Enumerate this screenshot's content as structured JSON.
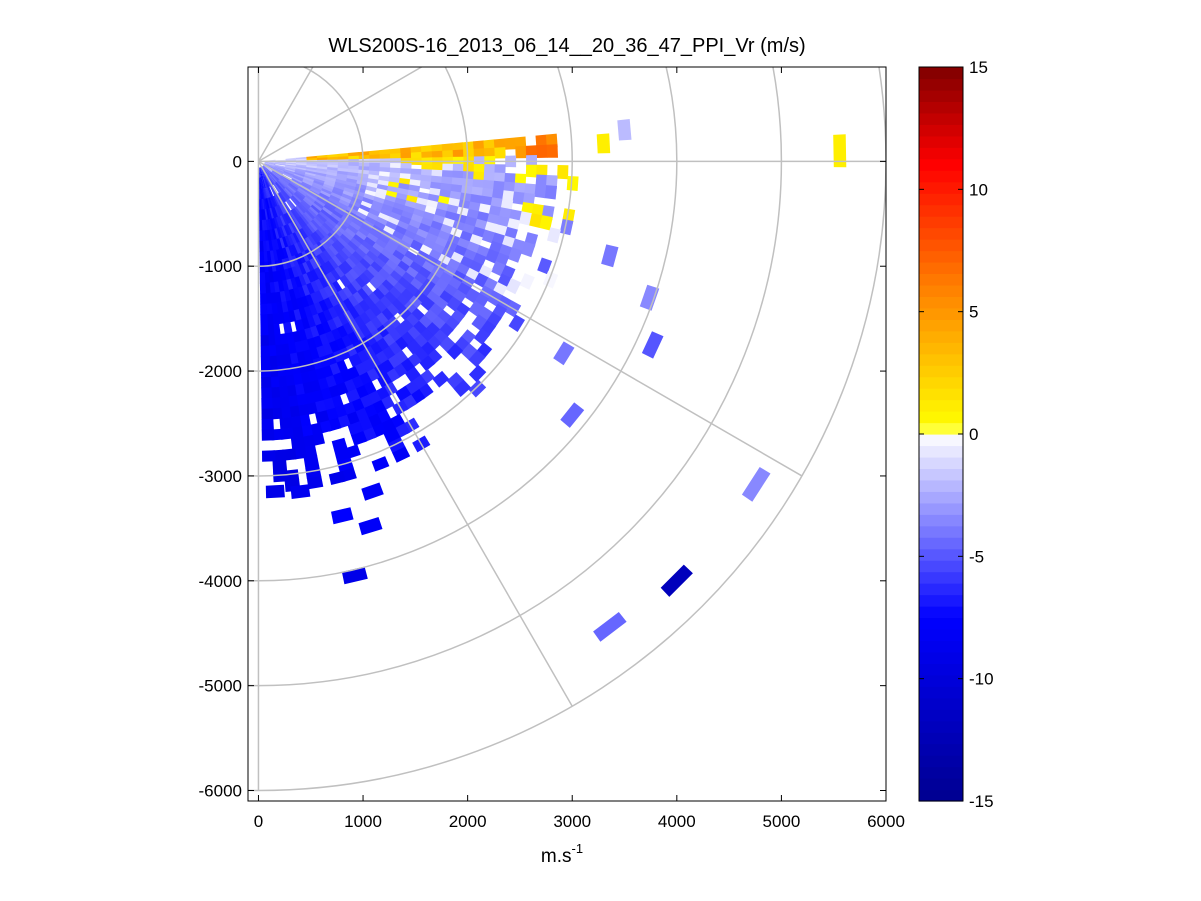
{
  "chart_data": {
    "type": "heatmap",
    "title": "WLS200S-16_2013_06_14__20_36_47_PPI_Vr (m/s)",
    "xlabel_base": "m.s",
    "xlabel_exp": "-1",
    "ylabel": "",
    "xlim": [
      -100,
      6000
    ],
    "ylim": [
      -6100,
      900
    ],
    "x_ticks": [
      0,
      1000,
      2000,
      3000,
      4000,
      5000,
      6000
    ],
    "x_tick_labels": [
      "0",
      "1000",
      "2000",
      "3000",
      "4000",
      "5000",
      "6000"
    ],
    "y_ticks": [
      0,
      -1000,
      -2000,
      -3000,
      -4000,
      -5000,
      -6000
    ],
    "y_tick_labels": [
      "0",
      "-1000",
      "-2000",
      "-3000",
      "-4000",
      "-5000",
      "-6000"
    ],
    "polar_grid": {
      "range_rings": [
        1000,
        2000,
        3000,
        4000,
        5000,
        6000
      ],
      "azimuth_spokes_deg": [
        0,
        -30,
        -60,
        -90,
        30,
        60,
        90
      ],
      "grid_color": "#c0c0c0"
    },
    "colorbar": {
      "range": [
        -15,
        15
      ],
      "ticks": [
        15,
        10,
        5,
        0,
        -5,
        -10,
        -15
      ],
      "tick_labels": [
        "15",
        "10",
        "5",
        "0",
        "-5",
        "-10",
        "-15"
      ],
      "colors_low_to_high": [
        "#00008f",
        "#0000ff",
        "#ffffff",
        "#ffff00",
        "#ff7f00",
        "#ff0000",
        "#7f0000"
      ]
    },
    "scan": {
      "azimuth_start_deg": 5,
      "azimuth_end_deg": -88,
      "azimuth_step_deg": 2,
      "range_gate_m": 100,
      "description": "Radial velocity PPI: positive (yellow/orange) near 0-10 deg above east, negative (blue) elsewhere, stronger negative toward south"
    },
    "outlier_points": [
      {
        "x": 5560,
        "y": 100,
        "value": 1.0
      },
      {
        "x": 4760,
        "y": -3080,
        "value": -3.5
      },
      {
        "x": 4000,
        "y": -4000,
        "value": -12.0
      },
      {
        "x": 3360,
        "y": -4440,
        "value": -4.5
      },
      {
        "x": 3500,
        "y": 300,
        "value": -2.0
      },
      {
        "x": 3360,
        "y": -900,
        "value": -4.0
      },
      {
        "x": 3740,
        "y": -1300,
        "value": -3.5
      },
      {
        "x": 3770,
        "y": -1750,
        "value": -5.0
      },
      {
        "x": 920,
        "y": -3950,
        "value": -9.0
      },
      {
        "x": 1070,
        "y": -3480,
        "value": -8.0
      },
      {
        "x": 800,
        "y": -3380,
        "value": -7.5
      },
      {
        "x": 400,
        "y": -3150,
        "value": -8.5
      },
      {
        "x": 160,
        "y": -3150,
        "value": -9.0
      },
      {
        "x": 1090,
        "y": -3150,
        "value": -8.0
      },
      {
        "x": 3000,
        "y": -2420,
        "value": -4.5
      },
      {
        "x": 2920,
        "y": -1830,
        "value": -4.0
      },
      {
        "x": 3300,
        "y": 170,
        "value": 1.0
      }
    ]
  }
}
